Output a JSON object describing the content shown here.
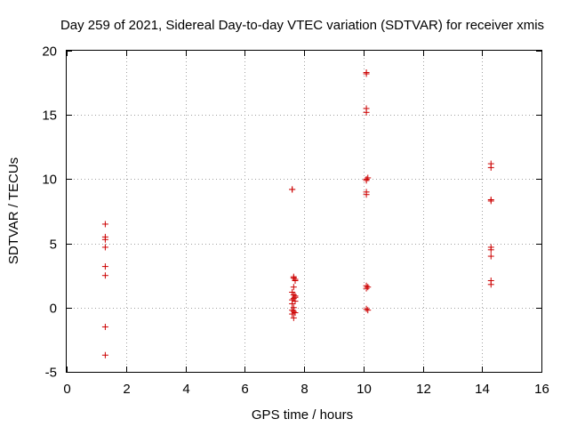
{
  "chart_data": {
    "type": "scatter",
    "title": "Day 259 of 2021, Sidereal Day-to-day VTEC variation (SDTVAR) for receiver xmis",
    "xlabel": "GPS time / hours",
    "ylabel": "SDTVAR / TECUs",
    "xlim": [
      0,
      16
    ],
    "ylim": [
      -5,
      20
    ],
    "xticks": [
      0,
      2,
      4,
      6,
      8,
      10,
      12,
      14,
      16
    ],
    "xtick_labels": [
      "0",
      "2",
      "4",
      "6",
      "8",
      "10",
      "12",
      "14",
      "16"
    ],
    "yticks": [
      -5,
      0,
      5,
      10,
      15,
      20
    ],
    "ytick_labels": [
      "-5",
      "0",
      "5",
      "10",
      "15",
      "20"
    ],
    "grid": true,
    "marker": "+",
    "color": "#cc0000",
    "series": [
      {
        "name": "SDTVAR",
        "x": [
          1.3,
          1.3,
          1.3,
          1.3,
          1.3,
          1.3,
          1.3,
          1.3,
          7.6,
          7.6,
          7.65,
          7.65,
          7.7,
          7.7,
          7.65,
          7.6,
          7.65,
          7.7,
          7.7,
          7.65,
          7.6,
          7.7,
          7.6,
          7.65,
          7.6,
          7.65,
          7.7,
          7.6,
          7.65,
          10.1,
          10.1,
          10.1,
          10.1,
          10.1,
          10.15,
          10.1,
          10.1,
          10.1,
          10.1,
          10.15,
          10.1,
          10.1,
          10.15,
          14.3,
          14.3,
          14.3,
          14.3,
          14.3,
          14.3,
          14.3,
          14.3,
          14.3
        ],
        "y": [
          6.5,
          5.5,
          5.3,
          4.7,
          3.2,
          2.5,
          -1.5,
          -3.7,
          9.2,
          9.2,
          2.4,
          2.3,
          2.2,
          2.1,
          1.6,
          1.2,
          1.0,
          0.9,
          0.8,
          0.7,
          0.6,
          0.5,
          0.3,
          0.0,
          -0.2,
          -0.3,
          -0.4,
          -0.5,
          -0.8,
          18.3,
          18.2,
          15.5,
          15.2,
          10.0,
          10.1,
          9.9,
          9.0,
          8.8,
          1.7,
          1.6,
          1.5,
          -0.1,
          -0.2,
          11.2,
          10.9,
          8.4,
          8.3,
          4.7,
          4.5,
          4.0,
          2.1,
          1.8
        ]
      }
    ]
  }
}
